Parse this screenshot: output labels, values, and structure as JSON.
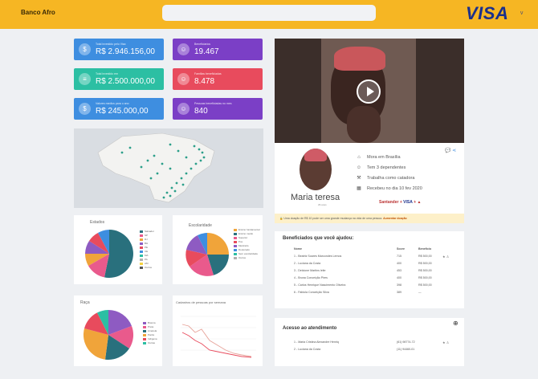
{
  "header": {
    "brand": "Banco Afro",
    "search_placeholder": "",
    "logo": "VISA",
    "logo_mark": "V"
  },
  "stats": [
    {
      "label": "Total investido pelo Visa",
      "value": "R$ 2.946.156,00",
      "color": "#3e8ee0",
      "icon": "money-icon"
    },
    {
      "label": "Beneficiarios",
      "value": "19.467",
      "color": "#7b3fc6",
      "icon": "people-icon"
    },
    {
      "label": "Total investido em",
      "value": "R$ 2.500.000,00",
      "color": "#2cbfa3",
      "icon": "stack-icon"
    },
    {
      "label": "Familias beneficiadas",
      "value": "8.478",
      "color": "#e84b5d",
      "icon": "family-icon"
    },
    {
      "label": "Valores medios para o ano",
      "value": "R$ 245.000,00",
      "color": "#3e8ee0",
      "icon": "money-icon"
    },
    {
      "label": "Pessoas beneficiadas no mes",
      "value": "840",
      "color": "#7b3fc6",
      "icon": "people-icon"
    }
  ],
  "charts": {
    "pie1": {
      "title": "Estados",
      "legend": [
        "Salvador",
        "SP",
        "RJ",
        "BH",
        "PE",
        "CE",
        "MA",
        "PA",
        "AM",
        "Outros"
      ]
    },
    "pie2": {
      "title": "Escolaridade",
      "legend": [
        "Ensino fundamental",
        "Ensino medio",
        "Superior",
        "Pos",
        "Mestrado",
        "Doutorado",
        "Sem escolaridade",
        "Outros"
      ]
    },
    "pie3": {
      "title": "Raça",
      "legend": [
        "Branca",
        "Preta",
        "Amarela",
        "Parda",
        "Indigena",
        "Outras"
      ]
    },
    "line": {
      "title": "Cadastros de pessoas por semana"
    }
  },
  "profile": {
    "name": "Maria teresa",
    "age": "29 anos",
    "facts": [
      {
        "icon": "home-icon",
        "text": "Mora em Brasília"
      },
      {
        "icon": "family-icon",
        "text": "Tem 3 dependentes"
      },
      {
        "icon": "tools-icon",
        "text": "Trabalha como catadora"
      },
      {
        "icon": "calendar-icon",
        "text": "Recebeu no dia 10 fev 2020"
      }
    ],
    "partners": [
      "Santander",
      "VISA"
    ]
  },
  "warning": {
    "text": "Uma doação de R$ 10 pode ser uma grande mudança na vida de uma pessoa.",
    "link": "Aumentar doação"
  },
  "beneficiaries": {
    "title": "Beneficiados que você ajudou:",
    "headers": [
      "Nome",
      "Score",
      "Benefício"
    ],
    "rows": [
      [
        "1 - Beatriz Soares Marcondes Lemos",
        "715",
        "R$ 500,00"
      ],
      [
        "2 - Luciana da Costa",
        "400",
        "R$ 500,00"
      ],
      [
        "3 - Delcione Martins leite",
        "453",
        "R$ 500,00"
      ],
      [
        "4 - Bruna Conceição Pires",
        "400",
        "R$ 500,00"
      ],
      [
        "5 - Carlos Henrique Nascimento Oliveira",
        "398",
        "R$ 500,00"
      ],
      [
        "6 - Fabiola Conceição Silva",
        "389",
        "—"
      ]
    ]
  },
  "service": {
    "title": "Acesso ao atendimento",
    "rows": [
      [
        "1 - Maria Cristina Alexandre Henriq",
        "(61) 98774-72"
      ],
      [
        "2 - Luciana da Costa",
        "(11) 94460-01"
      ]
    ]
  }
}
